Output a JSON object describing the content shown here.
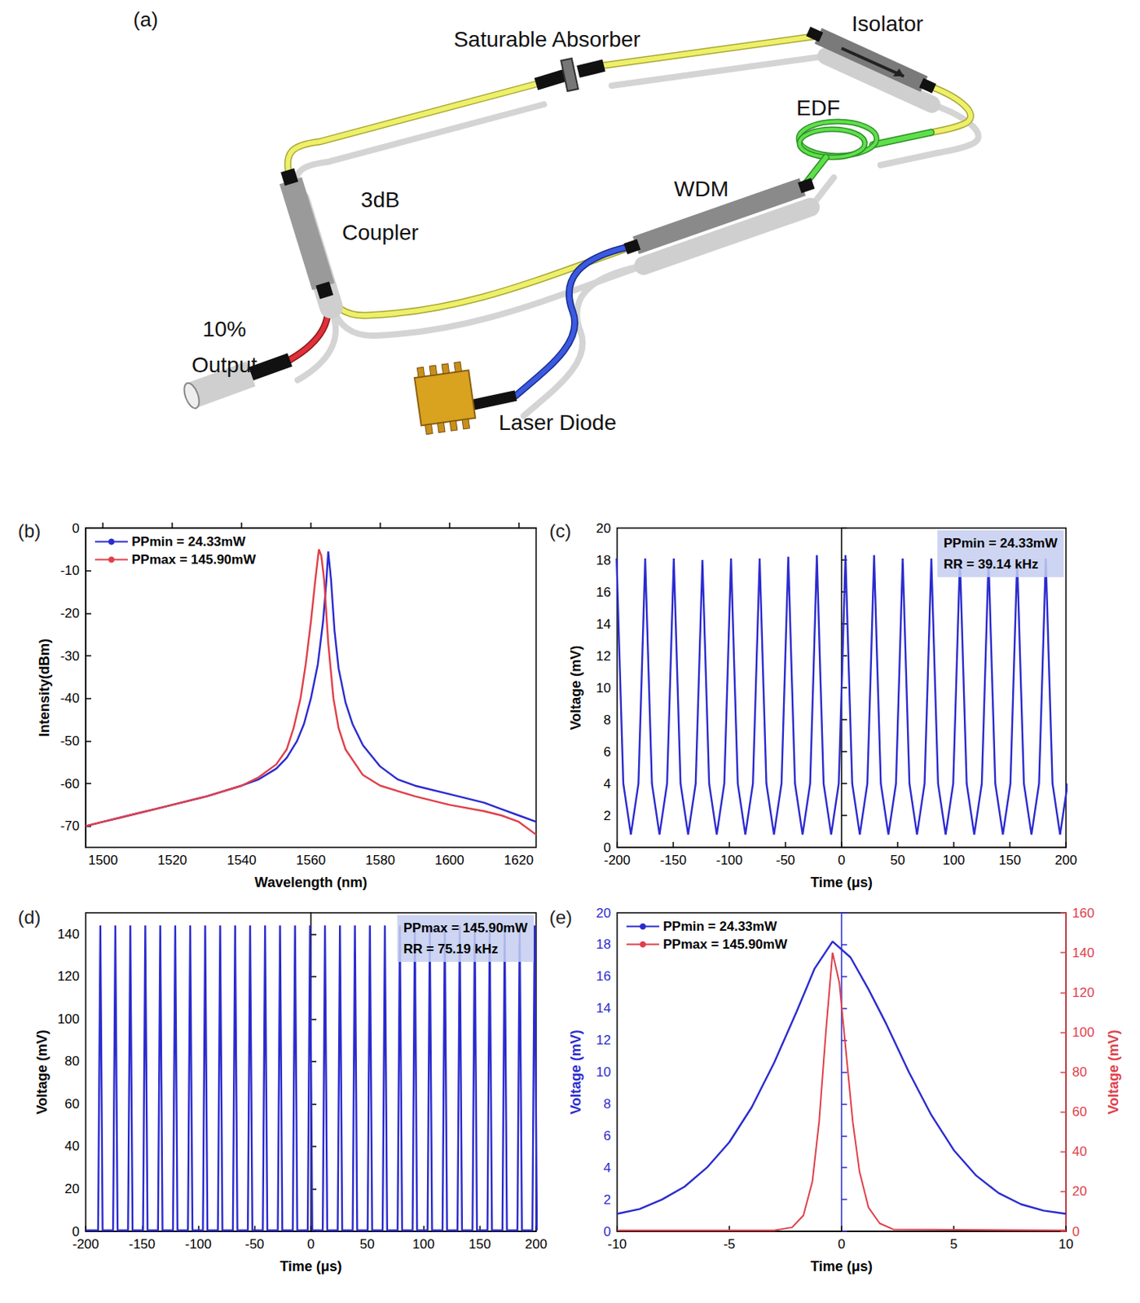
{
  "diagram": {
    "label": "(a)",
    "labels": {
      "saturable_absorber": "Saturable Absorber",
      "isolator": "Isolator",
      "edf": "EDF",
      "wdm": "WDM",
      "coupler": [
        "3dB",
        "Coupler"
      ],
      "output": [
        "10%",
        "Output"
      ],
      "laser_diode": "Laser Diode"
    }
  },
  "chart_data": [
    {
      "type": "line",
      "title": "(b)",
      "x_label": "Wavelength (nm)",
      "y_label": "Intensity(dBm)",
      "xlim": [
        1495,
        1625
      ],
      "xticks": [
        1500,
        1520,
        1540,
        1560,
        1580,
        1600,
        1620
      ],
      "ylim": [
        -75,
        0
      ],
      "yticks": [
        -70,
        -60,
        -50,
        -40,
        -30,
        -20,
        -10,
        0
      ],
      "legend": "top-left",
      "grid": false,
      "series": [
        {
          "name": "PPmin = 24.33mW",
          "color": "#2b2bd0",
          "x": [
            1495,
            1500,
            1505,
            1510,
            1515,
            1520,
            1530,
            1540,
            1545,
            1550,
            1553,
            1556,
            1558,
            1560,
            1562,
            1563.5,
            1564.5,
            1565,
            1565.8,
            1566.8,
            1568,
            1570,
            1572,
            1575,
            1580,
            1585,
            1590,
            1600,
            1610,
            1615,
            1620,
            1625
          ],
          "values": [
            -70,
            -69,
            -68,
            -67,
            -66,
            -65,
            -63,
            -60.5,
            -59,
            -56.5,
            -54,
            -50,
            -46,
            -40,
            -32,
            -22,
            -12,
            -5.5,
            -12,
            -24,
            -33,
            -41,
            -46,
            -51,
            -56,
            -59,
            -60.5,
            -62.5,
            -64.5,
            -66,
            -67.5,
            -69
          ]
        },
        {
          "name": "PPmax = 145.90mW",
          "color": "#e0404a",
          "x": [
            1495,
            1500,
            1505,
            1510,
            1515,
            1520,
            1530,
            1540,
            1545,
            1550,
            1553,
            1555,
            1557,
            1558.5,
            1560,
            1561.3,
            1562.3,
            1563,
            1563.8,
            1565,
            1566.5,
            1568,
            1570,
            1575,
            1580,
            1590,
            1600,
            1610,
            1615,
            1620,
            1625
          ],
          "values": [
            -70,
            -69,
            -68,
            -67,
            -66,
            -65,
            -63,
            -60.5,
            -58.5,
            -55.5,
            -52,
            -47,
            -40,
            -32,
            -22,
            -12,
            -5,
            -6.5,
            -12,
            -27,
            -40,
            -47,
            -52,
            -58,
            -60.5,
            -63,
            -65,
            -66.5,
            -67.5,
            -69,
            -72
          ]
        }
      ]
    },
    {
      "type": "line",
      "title": "(c)",
      "x_label": "Time (μs)",
      "y_label": "Voltage (mV)",
      "xlim": [
        -200,
        200
      ],
      "xticks": [
        -200,
        -150,
        -100,
        -50,
        0,
        50,
        100,
        150,
        200
      ],
      "ylim": [
        0,
        20
      ],
      "yticks": [
        0,
        2,
        4,
        6,
        8,
        10,
        12,
        14,
        16,
        18,
        20
      ],
      "grid": false,
      "annotations": [
        "PPmin = 24.33mW",
        "RR = 39.14 kHz"
      ],
      "series": [
        {
          "color": "#2b2bd0",
          "x": [
            -200.5,
            -197.5,
            -194.5,
            -187.75,
            -181,
            -178,
            -175,
            -172,
            -169,
            -162.25,
            -155.5,
            -152.5,
            -149.5,
            -146.5,
            -143.5,
            -136.75,
            -130,
            -127,
            -124,
            -121,
            -118,
            -111.25,
            -104.5,
            -101.5,
            -98.5,
            -95.5,
            -92.5,
            -85.75,
            -79,
            -76,
            -73,
            -70,
            -67,
            -60.25,
            -53.5,
            -50.5,
            -47.5,
            -44.5,
            -41.5,
            -34.75,
            -28,
            -25,
            -22,
            -19,
            -16,
            -9.25,
            -2.5,
            0.5,
            3.5,
            6.5,
            9.5,
            16.25,
            23,
            26,
            29,
            32,
            35,
            41.75,
            48.5,
            51.5,
            54.5,
            57.5,
            60.5,
            67.25,
            74,
            77,
            80,
            83,
            86,
            92.75,
            99.5,
            102.5,
            105.5,
            108.5,
            111.5,
            118.25,
            125,
            128,
            131,
            134,
            137,
            143.75,
            150.5,
            153.5,
            156.5,
            159.5,
            162.5,
            169.25,
            176,
            179,
            182,
            185,
            188,
            194.75,
            201.5
          ],
          "values": [
            18.1,
            11,
            4,
            0.8,
            4,
            11,
            18.1,
            11,
            4,
            0.8,
            4,
            11,
            18.1,
            11,
            4,
            0.8,
            4,
            11,
            18.0,
            11,
            4,
            0.8,
            4,
            11,
            18.1,
            11,
            4,
            0.8,
            4,
            11,
            18.1,
            11,
            4,
            0.8,
            4,
            11,
            18.2,
            11,
            4,
            0.8,
            4,
            11,
            18.3,
            11,
            4,
            0.8,
            4,
            11,
            18.3,
            11,
            4,
            0.8,
            4,
            11,
            18.3,
            11,
            4,
            0.8,
            4,
            11,
            18.1,
            11,
            4,
            0.8,
            4,
            11,
            18.1,
            11,
            4,
            0.8,
            4,
            11,
            18.1,
            11,
            4,
            0.8,
            4,
            11,
            18.1,
            11,
            4,
            0.8,
            4,
            11,
            18.0,
            11,
            4,
            0.8,
            4,
            11,
            18.1,
            11,
            4,
            0.8,
            4
          ]
        }
      ]
    },
    {
      "type": "line",
      "title": "(d)",
      "x_label": "Time (μs)",
      "y_label": "Voltage (mV)",
      "xlim": [
        -200,
        200
      ],
      "xticks": [
        -200,
        -150,
        -100,
        -50,
        0,
        50,
        100,
        150,
        200
      ],
      "ylim": [
        0,
        150
      ],
      "yticks": [
        0,
        20,
        40,
        60,
        80,
        100,
        120,
        140
      ],
      "grid": false,
      "annotations": [
        "PPmax = 145.90mW",
        "RR = 75.19 kHz"
      ],
      "series": [
        {
          "color": "#2b2bd0",
          "x": [
            -200,
            -189,
            -187,
            -185,
            -175.7,
            -173.7,
            -171.7,
            -162.4,
            -160.4,
            -158.4,
            -149.1,
            -147.1,
            -145.1,
            -135.8,
            -133.8,
            -131.8,
            -122.5,
            -120.5,
            -118.5,
            -109.2,
            -107.2,
            -105.2,
            -95.9,
            -93.9,
            -91.9,
            -82.6,
            -80.6,
            -78.6,
            -69.3,
            -67.3,
            -65.3,
            -56,
            -54,
            -52,
            -42.7,
            -40.7,
            -38.7,
            -29.4,
            -27.4,
            -25.4,
            -16.1,
            -14.1,
            -12.1,
            -2.8,
            -0.8,
            1.2,
            10.5,
            12.5,
            14.5,
            23.8,
            25.8,
            27.8,
            37.1,
            39.1,
            41.1,
            50.4,
            52.4,
            54.4,
            63.7,
            65.7,
            67.7,
            77,
            79,
            81,
            90.3,
            92.3,
            94.3,
            103.6,
            105.6,
            107.6,
            116.9,
            118.9,
            120.9,
            130.2,
            132.2,
            134.2,
            143.5,
            145.5,
            147.5,
            156.8,
            158.8,
            160.8,
            170.1,
            172.1,
            174.1,
            183.4,
            185.4,
            187.4,
            196.7,
            198.7,
            200.7
          ],
          "values": [
            0.5,
            0.5,
            144,
            0.5,
            0.5,
            144,
            0.5,
            0.5,
            144,
            0.5,
            0.5,
            144,
            0.5,
            0.5,
            144,
            0.5,
            0.5,
            144,
            0.5,
            0.5,
            144,
            0.5,
            0.5,
            144,
            0.5,
            0.5,
            144,
            0.5,
            0.5,
            144,
            0.5,
            0.5,
            144,
            0.5,
            0.5,
            144,
            0.5,
            0.5,
            144,
            0.5,
            0.5,
            144,
            0.5,
            0.5,
            144,
            0.5,
            0.5,
            144,
            0.5,
            0.5,
            144,
            0.5,
            0.5,
            144,
            0.5,
            0.5,
            144,
            0.5,
            0.5,
            144,
            0.5,
            0.5,
            144,
            0.5,
            0.5,
            144,
            0.5,
            0.5,
            144,
            0.5,
            0.5,
            144,
            0.5,
            0.5,
            144,
            0.5,
            0.5,
            144,
            0.5,
            0.5,
            144,
            0.5,
            0.5,
            144,
            0.5,
            0.5,
            144,
            0.5,
            0.5,
            144,
            0.5
          ]
        }
      ]
    },
    {
      "type": "line",
      "title": "(e)",
      "x_label": "Time (μs)",
      "y_label": "Voltage (mV)",
      "y2_label": "Voltage (mV)",
      "xlim": [
        -10,
        10
      ],
      "xticks": [
        -10,
        -5,
        0,
        5,
        10
      ],
      "ylim": [
        0,
        20
      ],
      "yticks": [
        0,
        2,
        4,
        6,
        8,
        10,
        12,
        14,
        16,
        18,
        20
      ],
      "y2lim": [
        0,
        160
      ],
      "y2ticks": [
        0,
        20,
        40,
        60,
        80,
        100,
        120,
        140,
        160
      ],
      "legend": "top-left",
      "grid": false,
      "series": [
        {
          "name": "PPmin = 24.33mW",
          "color": "#2b2bd0",
          "x": [
            -10,
            -9,
            -8,
            -7,
            -6,
            -5,
            -4,
            -3,
            -2,
            -1.2,
            -0.4,
            0.4,
            1.2,
            2,
            3,
            4,
            5,
            6,
            7,
            8,
            9,
            10
          ],
          "values": [
            1.1,
            1.4,
            2,
            2.8,
            4,
            5.6,
            7.8,
            10.6,
            13.8,
            16.5,
            18.2,
            17.2,
            15.2,
            13,
            10,
            7.3,
            5.1,
            3.5,
            2.4,
            1.7,
            1.3,
            1.1
          ]
        },
        {
          "name": "PPmax = 145.90mW",
          "color": "#e0404a",
          "axis": "y2",
          "x": [
            -10,
            -3,
            -2.2,
            -1.7,
            -1.3,
            -1,
            -0.7,
            -0.4,
            -0.1,
            0.2,
            0.5,
            0.8,
            1.2,
            1.7,
            2.3,
            10
          ],
          "values": [
            0.5,
            0.5,
            2,
            8,
            25,
            55,
            100,
            140,
            125,
            90,
            55,
            30,
            12,
            4,
            1,
            0.5
          ]
        }
      ]
    }
  ]
}
